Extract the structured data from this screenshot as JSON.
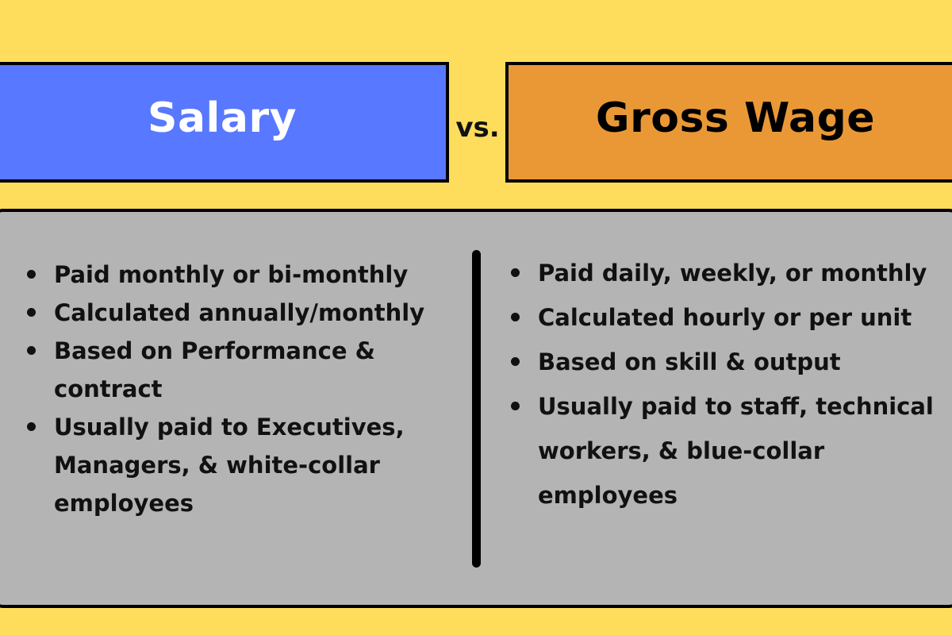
{
  "header": {
    "left_title": "Salary",
    "vs": "vs.",
    "right_title": "Gross Wage"
  },
  "colors": {
    "background": "#FFDD5C",
    "left_header": "#5878FF",
    "right_header": "#EA9836",
    "body_panel": "#B4B4B4"
  },
  "left_list": [
    "Paid monthly or bi-monthly",
    "Calculated annually/monthly",
    "Based on Performance & contract",
    "Usually paid to Executives, Managers, & white-collar employees"
  ],
  "right_list": [
    "Paid daily, weekly, or monthly",
    "Calculated hourly or per unit",
    "Based on skill & output",
    "Usually paid to staff, technical workers, & blue-collar employees"
  ]
}
